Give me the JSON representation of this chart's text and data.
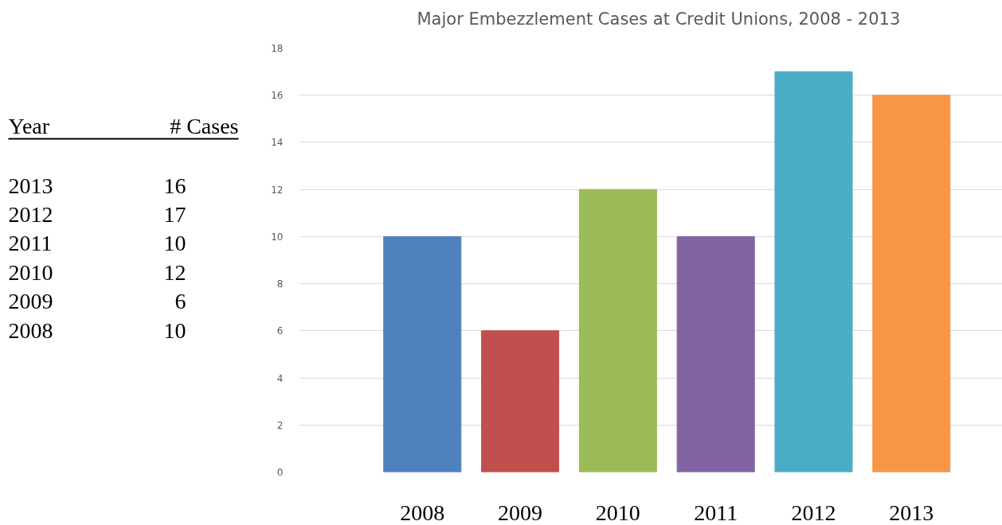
{
  "chart_data": {
    "type": "bar",
    "title": "Major Embezzlement Cases at Credit Unions, 2008 - 2013",
    "categories": [
      "2008",
      "2009",
      "2010",
      "2011",
      "2012",
      "2013"
    ],
    "values": [
      10,
      6,
      12,
      10,
      17,
      16
    ],
    "colors": [
      "#4f81bd",
      "#c0504d",
      "#9bbb59",
      "#8064a2",
      "#4bacc6",
      "#f79646"
    ],
    "ylim": [
      0,
      18
    ],
    "yticks": [
      0,
      2,
      4,
      6,
      8,
      10,
      12,
      14,
      16,
      18
    ],
    "grid": "y",
    "annotations": [
      "Year",
      "# Cases",
      "2013",
      "16",
      "2012",
      "17",
      "2011",
      "10",
      "2010",
      "12",
      "2009",
      "6",
      "2008",
      "10"
    ]
  }
}
